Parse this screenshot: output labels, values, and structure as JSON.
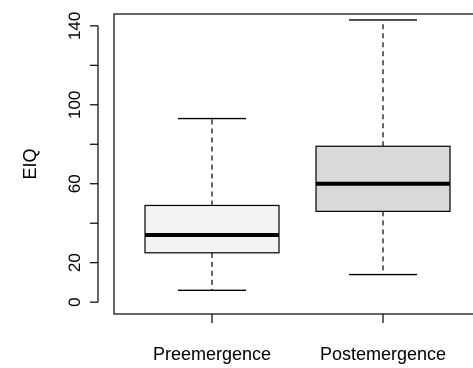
{
  "chart_data": {
    "type": "boxplot",
    "ylabel": "EIQ",
    "categories": [
      "Preemergence",
      "Postemergence"
    ],
    "yticks": [
      0,
      20,
      60,
      100,
      140
    ],
    "ylim": [
      -6,
      146
    ],
    "boxes": [
      {
        "label": "Preemergence",
        "whisker_low": 6,
        "q1": 25,
        "median": 34,
        "q3": 49,
        "whisker_high": 93,
        "fill": "#f2f2f2"
      },
      {
        "label": "Postemergence",
        "whisker_low": 14,
        "q1": 46,
        "median": 60,
        "q3": 79,
        "whisker_high": 143,
        "fill": "#d9d9d9"
      }
    ]
  }
}
